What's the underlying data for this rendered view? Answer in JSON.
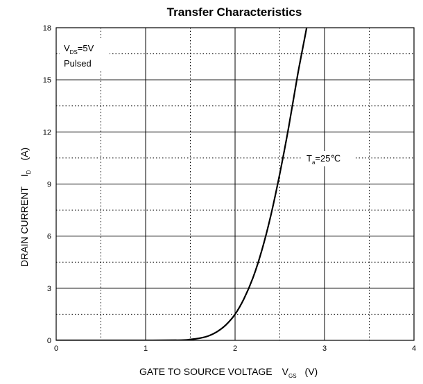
{
  "chart_data": {
    "type": "line",
    "title": "Transfer Characteristics",
    "xlabel": {
      "main": "GATE TO SOURCE VOLTAGE",
      "symbol": "V",
      "subscript": "GS",
      "unit": "(V)"
    },
    "ylabel": {
      "main": "DRAIN CURRENT",
      "symbol": "I",
      "subscript": "D",
      "unit": "(A)"
    },
    "xlim": [
      0,
      4
    ],
    "ylim": [
      0,
      18
    ],
    "x_ticks": [
      0,
      1,
      2,
      3,
      4
    ],
    "y_ticks": [
      0,
      3,
      6,
      9,
      12,
      15,
      18
    ],
    "x_ticks_labels": [
      "0",
      "1",
      "2",
      "3",
      "4"
    ],
    "y_ticks_labels": [
      "0",
      "3",
      "6",
      "9",
      "12",
      "15",
      "18"
    ],
    "grid": {
      "major": true,
      "minor_dotted": true,
      "minor_x": [
        0.5,
        1.5,
        2.5,
        3.5
      ],
      "minor_y": [
        1.5,
        4.5,
        7.5,
        10.5,
        13.5,
        16.5
      ]
    },
    "series": [
      {
        "x": [
          0,
          0.5,
          1.0,
          1.4,
          1.5,
          1.6,
          1.7,
          1.8,
          1.9,
          2.0,
          2.1,
          2.2,
          2.3,
          2.4,
          2.5,
          2.6,
          2.7,
          2.8,
          2.85
        ],
        "y": [
          0,
          0,
          0,
          0.01,
          0.05,
          0.12,
          0.25,
          0.5,
          0.9,
          1.5,
          2.4,
          3.6,
          5.2,
          7.2,
          9.6,
          12.3,
          15.3,
          18.0,
          19.5
        ]
      }
    ],
    "annotations": {
      "conditions": {
        "symbol": "V",
        "subscript": "DS",
        "value": "=5V",
        "line2": "Pulsed"
      },
      "curve_label": {
        "symbol": "T",
        "subscript": "a",
        "value": "=25℃"
      }
    }
  },
  "colors": {
    "line": "#000000",
    "grid": "#000000",
    "background": "#ffffff"
  }
}
